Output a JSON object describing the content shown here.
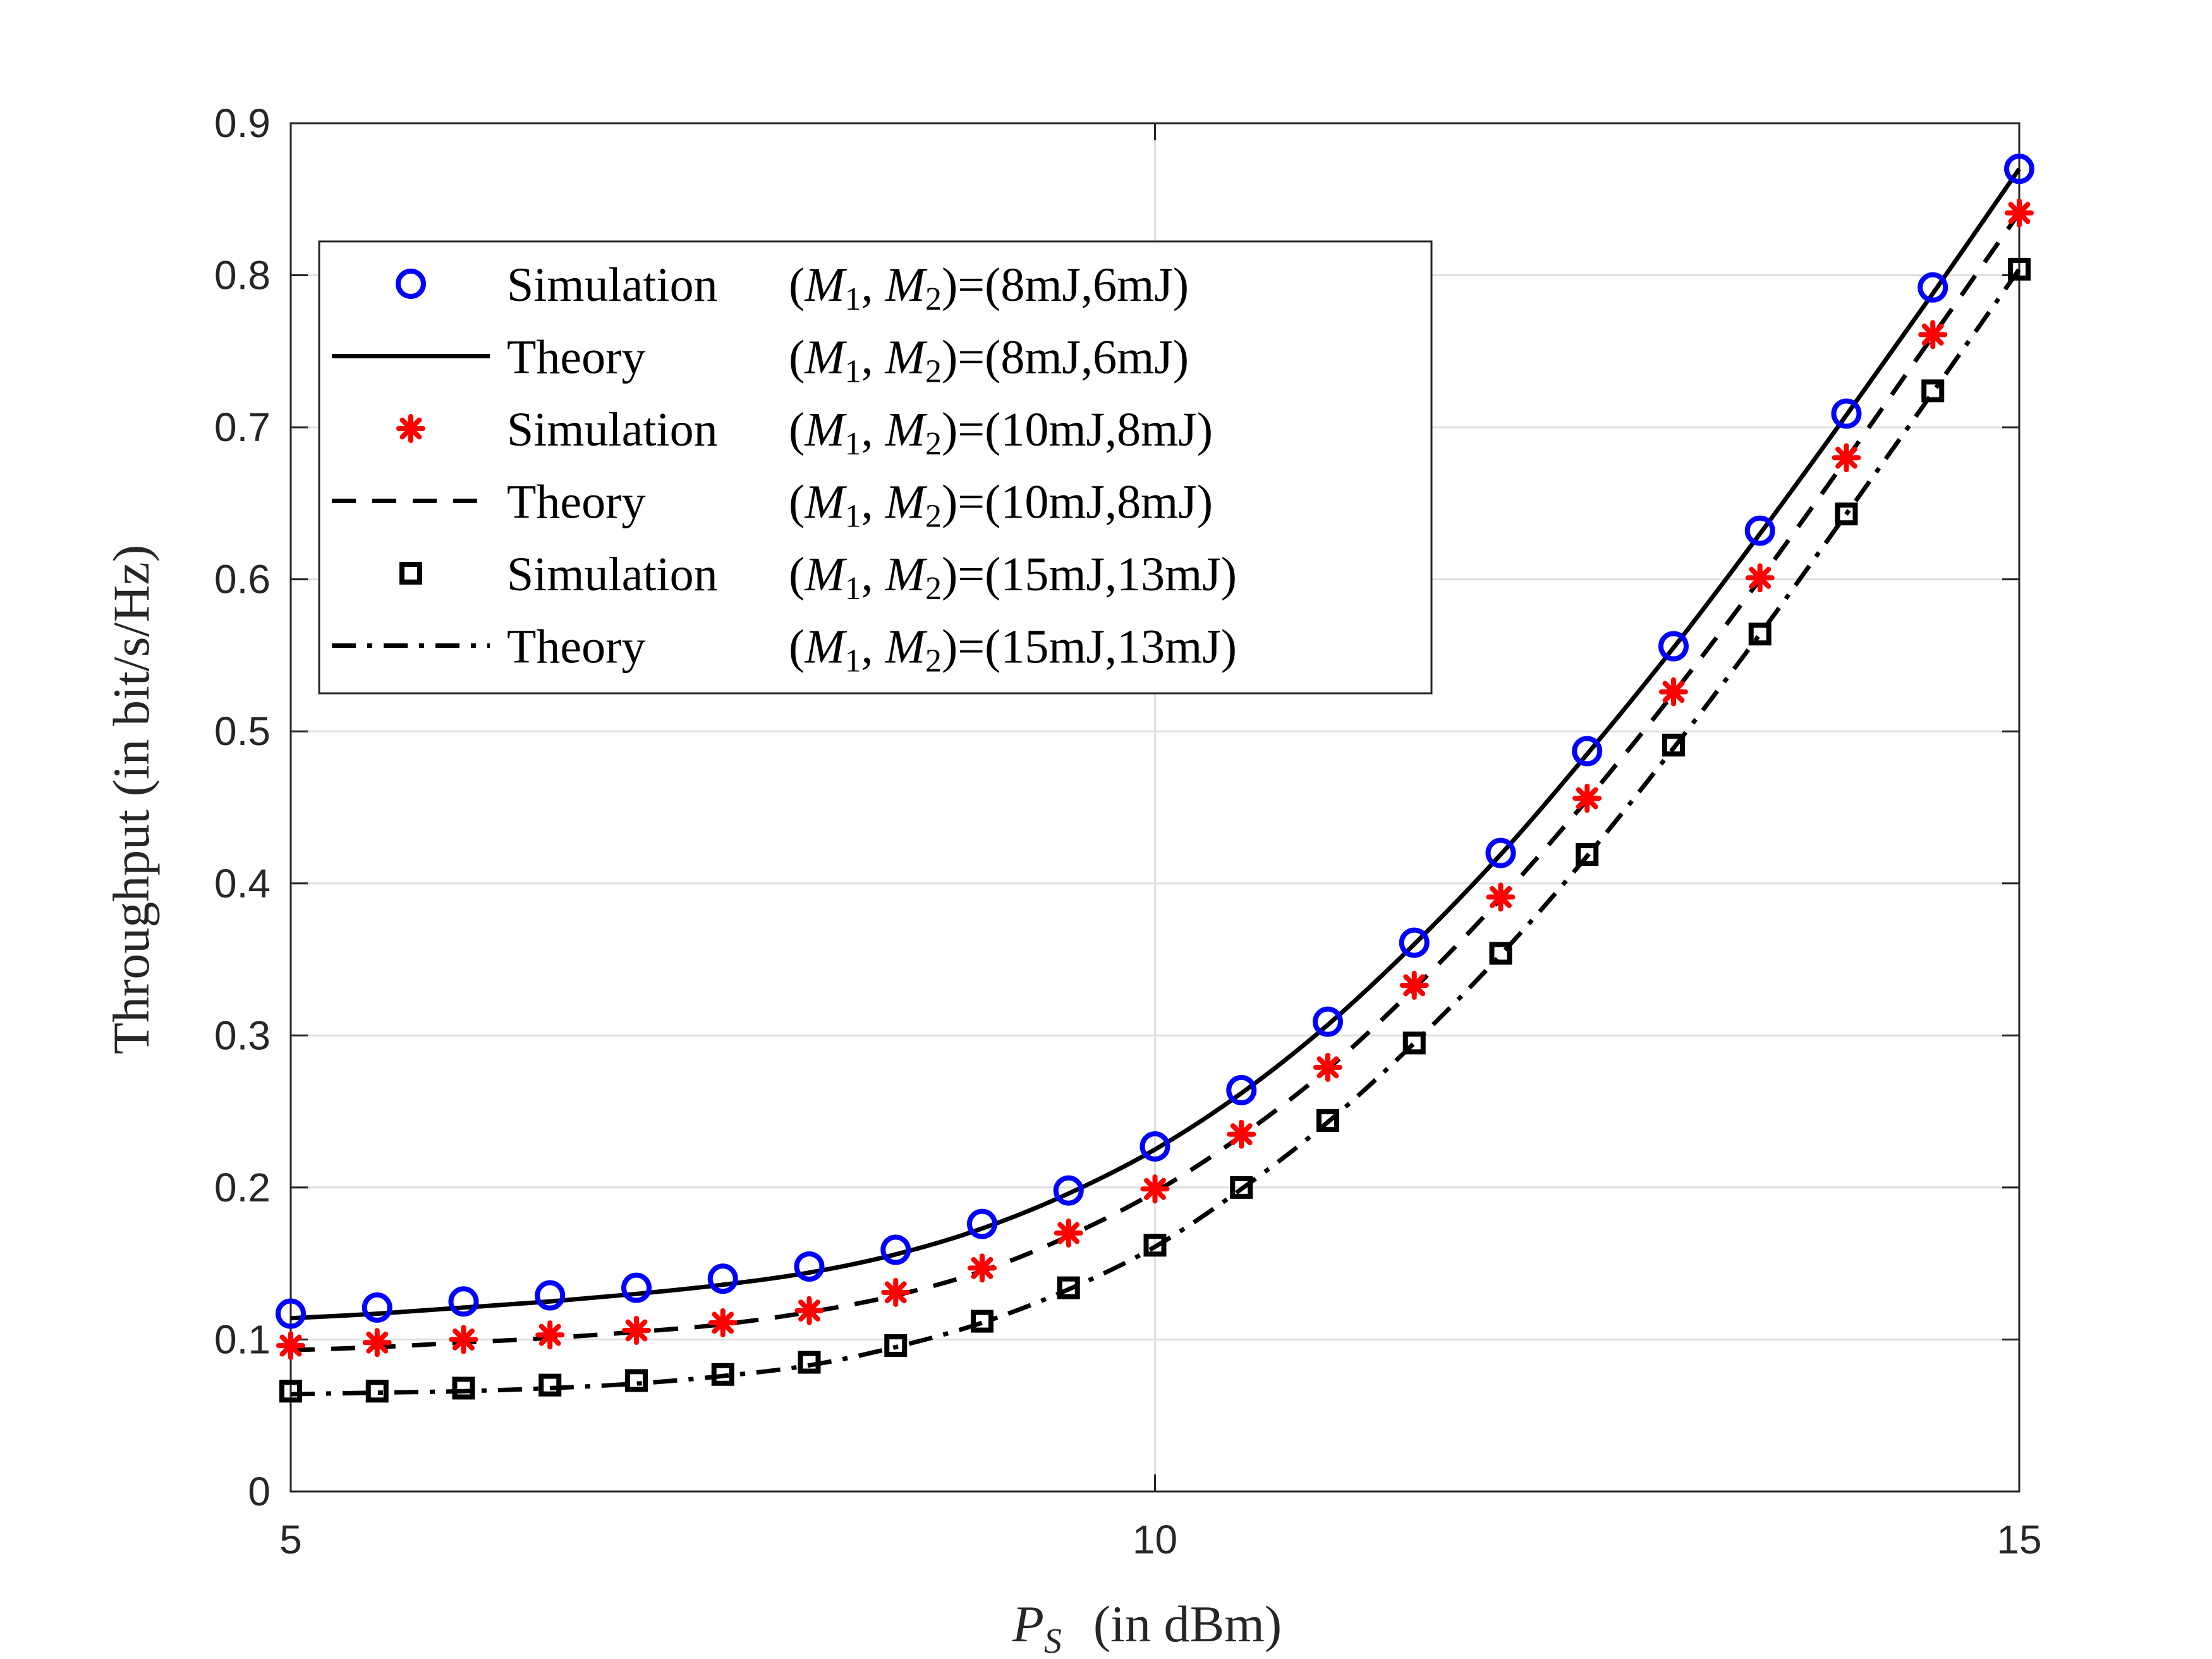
{
  "chart_data": {
    "type": "line",
    "title": "",
    "xlabel_main": "P",
    "xlabel_sub": "S",
    "xlabel_unit": "(in dBm)",
    "ylabel": "Throughput (in bit/s/Hz)",
    "xlim": [
      5,
      15
    ],
    "ylim": [
      0,
      0.9
    ],
    "x_ticks": [
      5,
      10,
      15
    ],
    "y_ticks": [
      0,
      0.1,
      0.2,
      0.3,
      0.4,
      0.5,
      0.6,
      0.7,
      0.8,
      0.9
    ],
    "x_tick_labels": [
      "5",
      "10",
      "15"
    ],
    "y_tick_labels": [
      "0",
      "0.1",
      "0.2",
      "0.3",
      "0.4",
      "0.5",
      "0.6",
      "0.7",
      "0.8",
      "0.9"
    ],
    "grid": true,
    "legend_position": "upper-left",
    "x": [
      5,
      5.5,
      6,
      6.5,
      7,
      7.5,
      8,
      8.5,
      9,
      9.5,
      10,
      10.5,
      11,
      11.5,
      12,
      12.5,
      13,
      13.5,
      14,
      14.5,
      15
    ],
    "series": [
      {
        "name": "Simulation (M1,M2)=(8mJ,6mJ)",
        "legend_kind": "Simulation",
        "style": "circle",
        "color": "#0000ff",
        "values": [
          0.117,
          0.121,
          0.125,
          0.129,
          0.134,
          0.14,
          0.148,
          0.159,
          0.176,
          0.198,
          0.227,
          0.264,
          0.309,
          0.361,
          0.42,
          0.487,
          0.556,
          0.632,
          0.709,
          0.792,
          0.87
        ]
      },
      {
        "name": "Theory (M1,M2)=(8mJ,6mJ)",
        "legend_kind": "Theory",
        "style": "solid",
        "color": "#000000",
        "values": [
          0.114,
          0.117,
          0.121,
          0.125,
          0.13,
          0.136,
          0.144,
          0.156,
          0.173,
          0.196,
          0.225,
          0.262,
          0.307,
          0.36,
          0.419,
          0.485,
          0.555,
          0.63,
          0.708,
          0.788,
          0.87
        ]
      },
      {
        "name": "Simulation (M1,M2)=(10mJ,8mJ)",
        "legend_kind": "Simulation",
        "style": "asterisk",
        "color": "#ff0000",
        "values": [
          0.096,
          0.098,
          0.1,
          0.103,
          0.106,
          0.111,
          0.119,
          0.131,
          0.147,
          0.17,
          0.199,
          0.235,
          0.279,
          0.333,
          0.391,
          0.456,
          0.526,
          0.601,
          0.68,
          0.761,
          0.841
        ]
      },
      {
        "name": "Theory (M1,M2)=(10mJ,8mJ)",
        "legend_kind": "Theory",
        "style": "dashed",
        "color": "#000000",
        "values": [
          0.093,
          0.095,
          0.098,
          0.101,
          0.105,
          0.11,
          0.118,
          0.129,
          0.145,
          0.168,
          0.197,
          0.234,
          0.278,
          0.331,
          0.39,
          0.455,
          0.525,
          0.6,
          0.679,
          0.76,
          0.841
        ]
      },
      {
        "name": "Simulation (M1,M2)=(15mJ,13mJ)",
        "legend_kind": "Simulation",
        "style": "square",
        "color": "#000000",
        "values": [
          0.066,
          0.066,
          0.068,
          0.07,
          0.073,
          0.077,
          0.085,
          0.096,
          0.112,
          0.134,
          0.162,
          0.2,
          0.244,
          0.295,
          0.354,
          0.419,
          0.491,
          0.564,
          0.643,
          0.724,
          0.804
        ]
      },
      {
        "name": "Theory (M1,M2)=(15mJ,13mJ)",
        "legend_kind": "Theory",
        "style": "dashdot",
        "color": "#000000",
        "values": [
          0.064,
          0.065,
          0.066,
          0.068,
          0.071,
          0.076,
          0.083,
          0.095,
          0.111,
          0.133,
          0.161,
          0.199,
          0.243,
          0.295,
          0.353,
          0.418,
          0.489,
          0.564,
          0.643,
          0.723,
          0.804
        ]
      }
    ],
    "legend_entries": [
      {
        "kind": "Simulation",
        "m1": "M",
        "sub1": "1",
        "m2": "M",
        "sub2": "2",
        "value": "=(8mJ,6mJ)"
      },
      {
        "kind": "Theory",
        "m1": "M",
        "sub1": "1",
        "m2": "M",
        "sub2": "2",
        "value": "=(8mJ,6mJ)"
      },
      {
        "kind": "Simulation",
        "m1": "M",
        "sub1": "1",
        "m2": "M",
        "sub2": "2",
        "value": "=(10mJ,8mJ)"
      },
      {
        "kind": "Theory",
        "m1": "M",
        "sub1": "1",
        "m2": "M",
        "sub2": "2",
        "value": "=(10mJ,8mJ)"
      },
      {
        "kind": "Simulation",
        "m1": "M",
        "sub1": "1",
        "m2": "M",
        "sub2": "2",
        "value": "=(15mJ,13mJ)"
      },
      {
        "kind": "Theory",
        "m1": "M",
        "sub1": "1",
        "m2": "M",
        "sub2": "2",
        "value": "=(15mJ,13mJ)"
      }
    ]
  }
}
